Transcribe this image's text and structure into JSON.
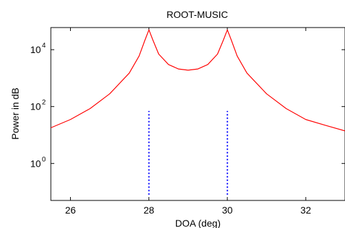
{
  "chart_data": {
    "type": "line",
    "title": "ROOT-MUSIC",
    "xlabel": "DOA (deg)",
    "ylabel": "Power in dB",
    "xlim": [
      25.5,
      33
    ],
    "ylim": [
      0.05,
      60000
    ],
    "y_scale": "log",
    "grid": false,
    "x_ticks": [
      {
        "value": 26,
        "label": "26"
      },
      {
        "value": 28,
        "label": "28"
      },
      {
        "value": 30,
        "label": "30"
      },
      {
        "value": 32,
        "label": "32"
      }
    ],
    "y_ticks": [
      {
        "value": 1,
        "base": "10",
        "exp": "0"
      },
      {
        "value": 100,
        "base": "10",
        "exp": "2"
      },
      {
        "value": 10000,
        "base": "10",
        "exp": "4"
      }
    ],
    "series": [
      {
        "color": "#ff0000",
        "style": "solid",
        "x": [
          25.5,
          26.0,
          26.5,
          27.0,
          27.5,
          27.75,
          27.9,
          28.0,
          28.1,
          28.25,
          28.5,
          28.75,
          29.0,
          29.25,
          29.5,
          29.75,
          29.9,
          30.0,
          30.1,
          30.25,
          30.5,
          31.0,
          31.5,
          32.0,
          32.5,
          33.0
        ],
        "y": [
          18,
          35,
          85,
          280,
          1500,
          6000,
          22000,
          50000,
          22000,
          7000,
          3000,
          2100,
          1900,
          2100,
          3000,
          7000,
          22000,
          50000,
          22000,
          6000,
          1500,
          280,
          85,
          35,
          22,
          14
        ]
      }
    ],
    "markers": [
      {
        "x": 28,
        "y_from": 0.08,
        "y_to": 70,
        "color": "#0000ff",
        "style": "dotted"
      },
      {
        "x": 30,
        "y_from": 0.08,
        "y_to": 70,
        "color": "#0000ff",
        "style": "dotted"
      }
    ]
  }
}
